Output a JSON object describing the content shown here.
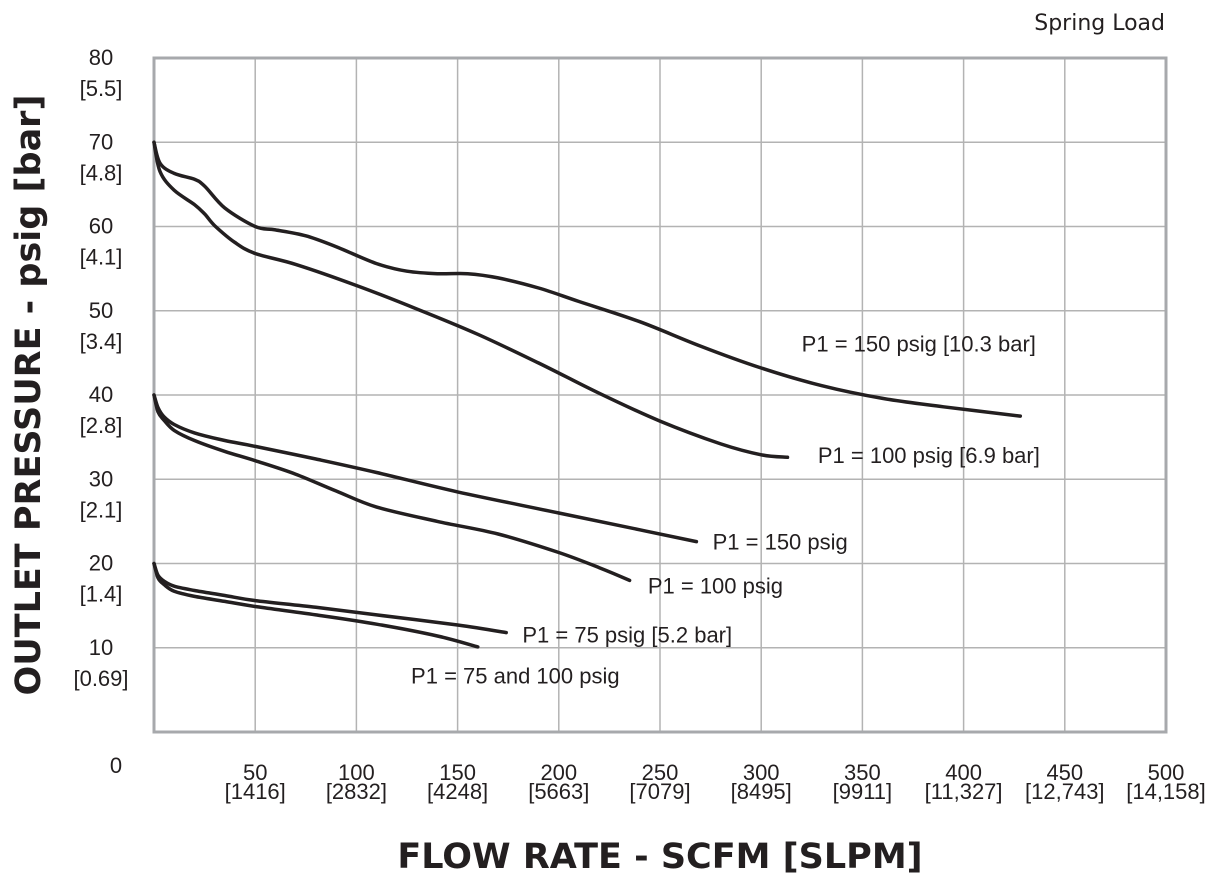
{
  "chart_data": {
    "type": "line",
    "corner_note": "Spring Load",
    "xlabel": "FLOW RATE - SCFM [SLPM]",
    "ylabel": "OUTLET PRESSURE - psig [bar]",
    "xlim": [
      0,
      500
    ],
    "ylim": [
      0,
      80
    ],
    "grid": true,
    "x_ticks": [
      {
        "value": 50,
        "label": "50",
        "sub": "[1416]"
      },
      {
        "value": 100,
        "label": "100",
        "sub": "[2832]"
      },
      {
        "value": 150,
        "label": "150",
        "sub": "[4248]"
      },
      {
        "value": 200,
        "label": "200",
        "sub": "[5663]"
      },
      {
        "value": 250,
        "label": "250",
        "sub": "[7079]"
      },
      {
        "value": 300,
        "label": "300",
        "sub": "[8495]"
      },
      {
        "value": 350,
        "label": "350",
        "sub": "[9911]"
      },
      {
        "value": 400,
        "label": "400",
        "sub": "[11,327]"
      },
      {
        "value": 450,
        "label": "450",
        "sub": "[12,743]"
      },
      {
        "value": 500,
        "label": "500",
        "sub": "[14,158]"
      }
    ],
    "y_ticks": [
      {
        "value": 0,
        "label": "0",
        "sub": ""
      },
      {
        "value": 10,
        "label": "10",
        "sub": "[0.69]"
      },
      {
        "value": 20,
        "label": "20",
        "sub": "[1.4]"
      },
      {
        "value": 30,
        "label": "30",
        "sub": "[2.1]"
      },
      {
        "value": 40,
        "label": "40",
        "sub": "[2.8]"
      },
      {
        "value": 50,
        "label": "50",
        "sub": "[3.4]"
      },
      {
        "value": 60,
        "label": "60",
        "sub": "[4.1]"
      },
      {
        "value": 70,
        "label": "70",
        "sub": "[4.8]"
      },
      {
        "value": 80,
        "label": "80",
        "sub": "[5.5]"
      }
    ],
    "series": [
      {
        "label": "P1 = 150 psig [10.3 bar]",
        "x": [
          0,
          3,
          10,
          20,
          25,
          35,
          50,
          60,
          75,
          90,
          110,
          125,
          140,
          155,
          170,
          190,
          210,
          240,
          270,
          300,
          330,
          360,
          390,
          428
        ],
        "y": [
          70,
          67.5,
          66.3,
          65.6,
          64.8,
          62.2,
          60,
          59.6,
          58.9,
          57.6,
          55.6,
          54.7,
          54.4,
          54.4,
          53.9,
          52.7,
          51.1,
          48.7,
          45.8,
          43.2,
          41.1,
          39.6,
          38.6,
          37.5
        ],
        "label_anchor": [
          320,
          46.1
        ]
      },
      {
        "label": "P1 = 100 psig [6.9 bar]",
        "x": [
          0,
          3,
          10,
          20,
          25,
          30,
          40,
          50,
          70,
          100,
          130,
          160,
          190,
          220,
          250,
          280,
          300,
          313
        ],
        "y": [
          70,
          66.5,
          64.3,
          62.6,
          61.5,
          60.1,
          58.1,
          56.8,
          55.5,
          53,
          50.2,
          47.2,
          43.8,
          40.2,
          36.9,
          34.2,
          32.9,
          32.6
        ],
        "label_anchor": [
          328,
          32.9
        ]
      },
      {
        "label": "P1 = 150 psig",
        "x": [
          0,
          2,
          5,
          10,
          20,
          35,
          50,
          80,
          110,
          150,
          200,
          240,
          268
        ],
        "y": [
          40,
          38.5,
          37.4,
          36.5,
          35.5,
          34.6,
          33.9,
          32.4,
          30.8,
          28.5,
          26,
          24,
          22.6
        ],
        "label_anchor": [
          276,
          22.6
        ]
      },
      {
        "label": "P1 = 100 psig",
        "x": [
          0,
          2,
          5,
          10,
          20,
          35,
          50,
          70,
          90,
          110,
          140,
          170,
          200,
          220,
          235
        ],
        "y": [
          40,
          38,
          37,
          35.8,
          34.6,
          33.3,
          32.2,
          30.6,
          28.6,
          26.7,
          25,
          23.5,
          21.3,
          19.5,
          18
        ],
        "label_anchor": [
          244,
          17.4
        ]
      },
      {
        "label": "P1 = 75 psig [5.2 bar]",
        "x": [
          0,
          2,
          5,
          10,
          20,
          35,
          50,
          80,
          110,
          150,
          174
        ],
        "y": [
          20,
          18.6,
          17.9,
          17.3,
          16.8,
          16.2,
          15.6,
          14.8,
          13.9,
          12.7,
          11.8
        ],
        "label_anchor": [
          182,
          11.6
        ]
      },
      {
        "label": "P1 = 75 and 100 psig",
        "x": [
          0,
          2,
          5,
          10,
          20,
          35,
          50,
          80,
          110,
          140,
          160
        ],
        "y": [
          20,
          18.3,
          17.5,
          16.7,
          16.1,
          15.5,
          14.9,
          13.9,
          12.8,
          11.4,
          10.1
        ],
        "label_anchor": [
          127,
          6.7
        ]
      }
    ]
  }
}
